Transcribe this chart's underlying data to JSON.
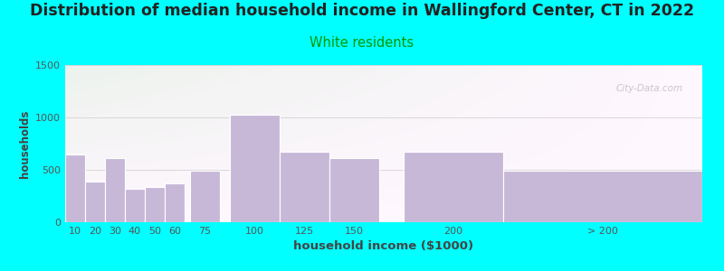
{
  "title": "Distribution of median household income in Wallingford Center, CT in 2022",
  "subtitle": "White residents",
  "xlabel": "household income ($1000)",
  "ylabel": "households",
  "background_color": "#00FFFF",
  "bar_color": "#C8B8D8",
  "bar_edge_color": "#ffffff",
  "title_fontsize": 12.5,
  "subtitle_fontsize": 10.5,
  "subtitle_color": "#009900",
  "bar_left_edges": [
    5,
    15,
    25,
    35,
    45,
    55,
    67.5,
    87.5,
    112.5,
    137.5,
    175,
    225
  ],
  "bar_widths": [
    10,
    10,
    10,
    10,
    10,
    10,
    15,
    25,
    25,
    25,
    50,
    100
  ],
  "values": [
    650,
    390,
    610,
    320,
    340,
    375,
    490,
    1030,
    675,
    610,
    670,
    490
  ],
  "xtick_positions": [
    10,
    20,
    30,
    40,
    50,
    60,
    75,
    100,
    125,
    150,
    200,
    275
  ],
  "xtick_labels": [
    "10",
    "20",
    "30",
    "40",
    "50",
    "60",
    "75",
    "100",
    "125",
    "150",
    "200",
    "> 200"
  ],
  "xlim": [
    5,
    325
  ],
  "ylim": [
    0,
    1500
  ],
  "yticks": [
    0,
    500,
    1000,
    1500
  ],
  "watermark": "City-Data.com",
  "title_color": "#222222"
}
